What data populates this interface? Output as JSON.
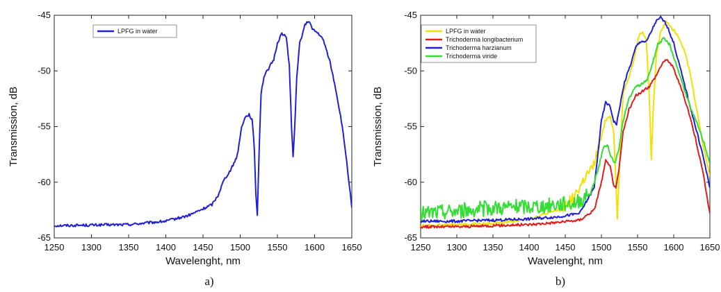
{
  "chart_data": [
    {
      "type": "line",
      "caption": "a)",
      "xlabel": "Wavelenght, nm",
      "ylabel": "Transmission, dB",
      "xlim": [
        1250,
        1650
      ],
      "ylim": [
        -65,
        -45
      ],
      "xticks": [
        "1250",
        "1300",
        "1350",
        "1400",
        "1450",
        "1500",
        "1550",
        "1600",
        "1650"
      ],
      "yticks": [
        "-45",
        "-50",
        "-55",
        "-60",
        "-65"
      ],
      "legend_position": "top-left",
      "series": [
        {
          "name": "LPFG in water",
          "color": "#1f1fd6",
          "points": [
            [
              1250,
              -63.9
            ],
            [
              1300,
              -63.85
            ],
            [
              1350,
              -63.8
            ],
            [
              1400,
              -63.5
            ],
            [
              1430,
              -63.0
            ],
            [
              1450,
              -62.4
            ],
            [
              1462,
              -62.0
            ],
            [
              1470,
              -61.2
            ],
            [
              1478,
              -59.8
            ],
            [
              1488,
              -58.8
            ],
            [
              1496,
              -57.6
            ],
            [
              1502,
              -55.0
            ],
            [
              1506,
              -54.2
            ],
            [
              1512,
              -53.9
            ],
            [
              1516,
              -54.4
            ],
            [
              1519,
              -57.0
            ],
            [
              1521,
              -61.0
            ],
            [
              1523,
              -63.0
            ],
            [
              1525,
              -58.0
            ],
            [
              1528,
              -52.0
            ],
            [
              1532,
              -50.5
            ],
            [
              1538,
              -49.8
            ],
            [
              1545,
              -49.0
            ],
            [
              1550,
              -47.5
            ],
            [
              1556,
              -46.6
            ],
            [
              1562,
              -47.0
            ],
            [
              1566,
              -49.5
            ],
            [
              1569,
              -55.0
            ],
            [
              1571,
              -57.8
            ],
            [
              1573,
              -55.5
            ],
            [
              1576,
              -50.5
            ],
            [
              1580,
              -47.5
            ],
            [
              1587,
              -45.9
            ],
            [
              1592,
              -45.5
            ],
            [
              1598,
              -46.3
            ],
            [
              1606,
              -46.7
            ],
            [
              1612,
              -47.3
            ],
            [
              1620,
              -49.0
            ],
            [
              1628,
              -51.5
            ],
            [
              1636,
              -54.5
            ],
            [
              1642,
              -57.5
            ],
            [
              1647,
              -60.5
            ],
            [
              1650,
              -62.3
            ]
          ]
        }
      ]
    },
    {
      "type": "line",
      "caption": "b)",
      "xlabel": "Wavelenght, nm",
      "ylabel": "Transmission, dB",
      "xlim": [
        1250,
        1650
      ],
      "ylim": [
        -65,
        -45
      ],
      "xticks": [
        "1250",
        "1300",
        "1350",
        "1400",
        "1450",
        "1500",
        "1550",
        "1600",
        "1650"
      ],
      "yticks": [
        "-45",
        "-50",
        "-55",
        "-60",
        "-65"
      ],
      "legend_position": "top-left",
      "series": [
        {
          "name": "LPFG in water",
          "color": "#f2e000",
          "points": [
            [
              1250,
              -63.9
            ],
            [
              1300,
              -63.8
            ],
            [
              1350,
              -63.7
            ],
            [
              1400,
              -63.3
            ],
            [
              1440,
              -62.5
            ],
            [
              1460,
              -61.5
            ],
            [
              1470,
              -60.5
            ],
            [
              1478,
              -59.5
            ],
            [
              1488,
              -58.8
            ],
            [
              1498,
              -56.5
            ],
            [
              1505,
              -54.5
            ],
            [
              1512,
              -54.0
            ],
            [
              1517,
              -55.5
            ],
            [
              1520,
              -60.0
            ],
            [
              1522,
              -63.2
            ],
            [
              1525,
              -58.5
            ],
            [
              1530,
              -52.0
            ],
            [
              1538,
              -50.5
            ],
            [
              1545,
              -49.0
            ],
            [
              1552,
              -46.8
            ],
            [
              1557,
              -46.5
            ],
            [
              1562,
              -47.2
            ],
            [
              1566,
              -52.0
            ],
            [
              1569,
              -57.9
            ],
            [
              1572,
              -53.0
            ],
            [
              1576,
              -48.5
            ],
            [
              1582,
              -46.5
            ],
            [
              1590,
              -45.5
            ],
            [
              1598,
              -46.2
            ],
            [
              1606,
              -46.8
            ],
            [
              1614,
              -48.0
            ],
            [
              1622,
              -50.0
            ],
            [
              1632,
              -53.5
            ],
            [
              1640,
              -56.5
            ],
            [
              1650,
              -59.5
            ]
          ]
        },
        {
          "name": "Trichoderma longibacterium",
          "color": "#e01b1b",
          "points": [
            [
              1250,
              -64.0
            ],
            [
              1300,
              -64.0
            ],
            [
              1350,
              -63.9
            ],
            [
              1400,
              -63.8
            ],
            [
              1440,
              -63.6
            ],
            [
              1470,
              -63.4
            ],
            [
              1490,
              -62.5
            ],
            [
              1500,
              -60.0
            ],
            [
              1506,
              -58.1
            ],
            [
              1512,
              -58.6
            ],
            [
              1517,
              -60.2
            ],
            [
              1520,
              -60.6
            ],
            [
              1524,
              -59.0
            ],
            [
              1530,
              -55.5
            ],
            [
              1538,
              -53.5
            ],
            [
              1548,
              -52.2
            ],
            [
              1558,
              -51.8
            ],
            [
              1566,
              -51.4
            ],
            [
              1575,
              -50.5
            ],
            [
              1585,
              -49.2
            ],
            [
              1592,
              -49.0
            ],
            [
              1600,
              -49.8
            ],
            [
              1610,
              -51.5
            ],
            [
              1620,
              -53.5
            ],
            [
              1630,
              -56.0
            ],
            [
              1640,
              -59.0
            ],
            [
              1650,
              -62.8
            ]
          ]
        },
        {
          "name": "Trichoderma harzianum",
          "color": "#1f1fd6",
          "points": [
            [
              1250,
              -63.5
            ],
            [
              1300,
              -63.5
            ],
            [
              1350,
              -63.4
            ],
            [
              1400,
              -63.3
            ],
            [
              1440,
              -63.1
            ],
            [
              1470,
              -62.8
            ],
            [
              1490,
              -60.5
            ],
            [
              1500,
              -54.5
            ],
            [
              1506,
              -52.8
            ],
            [
              1512,
              -53.2
            ],
            [
              1517,
              -54.5
            ],
            [
              1521,
              -54.8
            ],
            [
              1526,
              -53.0
            ],
            [
              1532,
              -51.0
            ],
            [
              1540,
              -49.5
            ],
            [
              1548,
              -47.8
            ],
            [
              1555,
              -47.3
            ],
            [
              1562,
              -47.4
            ],
            [
              1568,
              -46.6
            ],
            [
              1575,
              -45.6
            ],
            [
              1582,
              -45.2
            ],
            [
              1590,
              -45.8
            ],
            [
              1600,
              -47.5
            ],
            [
              1610,
              -50.0
            ],
            [
              1620,
              -52.5
            ],
            [
              1630,
              -55.0
            ],
            [
              1640,
              -57.5
            ],
            [
              1650,
              -60.5
            ]
          ]
        },
        {
          "name": "Trichoderma viride",
          "color": "#33dd33",
          "points": [
            [
              1250,
              -62.8
            ],
            [
              1300,
              -62.6
            ],
            [
              1350,
              -62.3
            ],
            [
              1400,
              -62.2
            ],
            [
              1440,
              -62.0
            ],
            [
              1465,
              -61.8
            ],
            [
              1485,
              -61.0
            ],
            [
              1495,
              -59.0
            ],
            [
              1502,
              -57.0
            ],
            [
              1508,
              -56.6
            ],
            [
              1514,
              -57.8
            ],
            [
              1519,
              -58.3
            ],
            [
              1524,
              -57.0
            ],
            [
              1530,
              -54.5
            ],
            [
              1538,
              -52.5
            ],
            [
              1548,
              -51.4
            ],
            [
              1556,
              -51.2
            ],
            [
              1563,
              -50.8
            ],
            [
              1570,
              -49.5
            ],
            [
              1578,
              -47.6
            ],
            [
              1586,
              -47.1
            ],
            [
              1594,
              -47.6
            ],
            [
              1604,
              -49.5
            ],
            [
              1614,
              -51.5
            ],
            [
              1624,
              -53.5
            ],
            [
              1634,
              -55.0
            ],
            [
              1642,
              -56.5
            ],
            [
              1650,
              -58.3
            ]
          ]
        }
      ]
    }
  ]
}
